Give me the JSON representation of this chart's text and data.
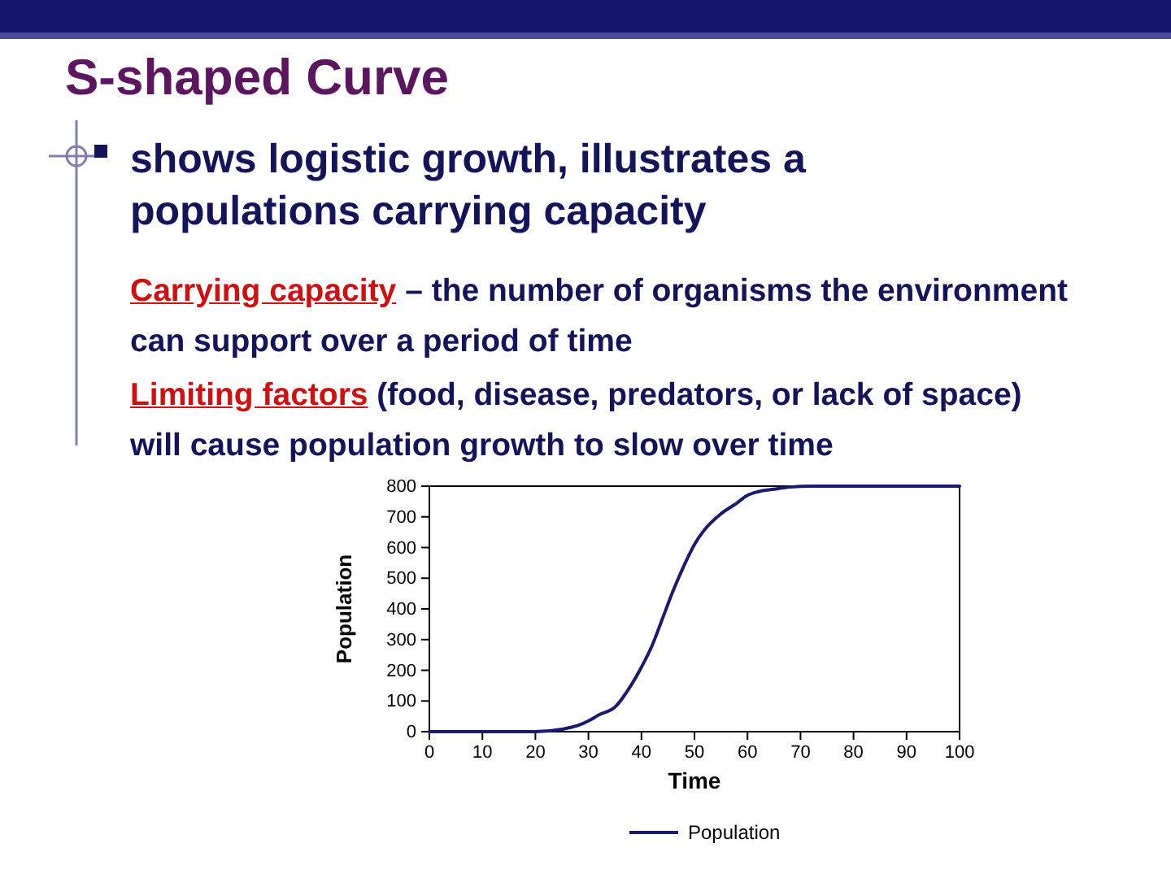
{
  "chart_data": {
    "type": "line",
    "title": "S-shaped Curve",
    "subtitle": "shows logistic growth, illustrates a populations carrying capacity",
    "annotations": [
      "Carrying capacity",
      "– the number of organisms the environment can support over a period of time",
      "Limiting factors",
      "(food, disease, predators, or lack of space) will cause population growth to slow over time"
    ],
    "xlabel": "Time",
    "ylabel": "Population",
    "series": [
      {
        "name": "Population",
        "color": "#1a1a6e",
        "x": [
          0,
          20,
          25,
          28,
          30,
          32,
          35,
          38,
          40,
          42,
          44,
          46,
          48,
          50,
          52,
          55,
          58,
          60,
          62,
          65,
          68,
          72,
          100
        ],
        "values": [
          0,
          0,
          8,
          20,
          35,
          55,
          80,
          150,
          210,
          280,
          370,
          460,
          540,
          610,
          660,
          710,
          745,
          770,
          782,
          790,
          797,
          800,
          800
        ]
      }
    ],
    "xlim": [
      0,
      100
    ],
    "xticks": [
      0,
      10,
      20,
      30,
      40,
      50,
      60,
      70,
      80,
      90,
      100
    ],
    "ylim": [
      0,
      800
    ],
    "yticks": [
      0,
      100,
      200,
      300,
      400,
      500,
      600,
      700,
      800
    ],
    "grid": false,
    "legend": "bottom",
    "marker": "none",
    "line_style": "solid"
  }
}
